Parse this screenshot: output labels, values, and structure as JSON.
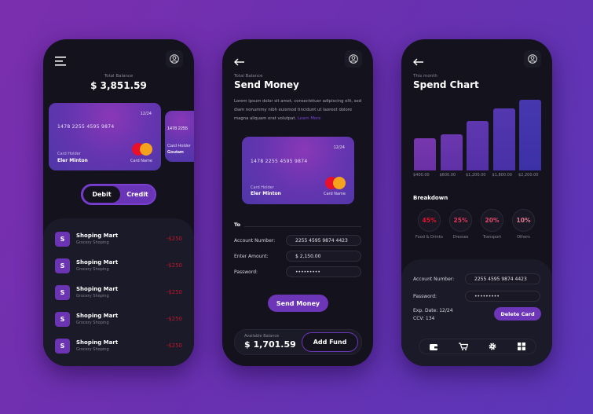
{
  "colors": {
    "accent": "#6d35b7",
    "negative": "#c0172c",
    "percent": "#e0243c",
    "panel": "#1b1a28",
    "screen": "#13121d"
  },
  "home": {
    "menu_icon": "hamburger-menu-icon",
    "profile_icon": "user-circle-icon",
    "total_label": "Total Balance",
    "total_value": "$ 3,851.59",
    "card": {
      "expiry": "12/24",
      "number": "1478 2255 4595 9874",
      "holder_label": "Card Holder",
      "holder_name": "Eler Minton",
      "brand_label": "Card Name"
    },
    "card2": {
      "number": "1478 2255",
      "holder_label": "Card Holder",
      "holder_name": "Goutam"
    },
    "toggle": {
      "debit": "Debit",
      "credit": "Credit",
      "selected": "Debit"
    },
    "transactions": [
      {
        "initial": "S",
        "name": "Shoping Mart",
        "category": "Grocery Shoping",
        "amount": "-$250"
      },
      {
        "initial": "S",
        "name": "Shoping Mart",
        "category": "Grocery Shoping",
        "amount": "-$250"
      },
      {
        "initial": "S",
        "name": "Shoping Mart",
        "category": "Grocery Shoping",
        "amount": "-$250"
      },
      {
        "initial": "S",
        "name": "Shoping Mart",
        "category": "Grocery Shoping",
        "amount": "-$250"
      },
      {
        "initial": "S",
        "name": "Shoping Mart",
        "category": "Grocery Shoping",
        "amount": "-$250"
      }
    ]
  },
  "send": {
    "subtitle": "Total Balance",
    "title": "Send Money",
    "description": "Lorem ipsum dolor sit amet, consectetuer adipiscing elit, sed diam nonummy nibh euismod tincidunt ut laoreet dolore magna aliquam erat volutpat.",
    "learn_more": "Learn More",
    "card": {
      "expiry": "12/24",
      "number": "1478 2255 4595 9874",
      "holder_label": "Card Holder",
      "holder_name": "Eler Minton",
      "brand_label": "Card Name"
    },
    "to_label": "To",
    "account_label": "Account Number:",
    "account_value": "2255 4595 9874 4423",
    "amount_label": "Enter Amount:",
    "amount_value": "$ 2,150.00",
    "password_label": "Password:",
    "password_value": "•••••••••",
    "send_button": "Send Money",
    "available_label": "Available Balance",
    "available_value": "$ 1,701.59",
    "add_fund_button": "Add Fund"
  },
  "chart": {
    "subtitle": "This month",
    "title": "Spend Chart",
    "breakdown_title": "Breakdown",
    "breakdown": [
      {
        "percent": "45%",
        "label": "Food & Drinks"
      },
      {
        "percent": "25%",
        "label": "Dresses"
      },
      {
        "percent": "20%",
        "label": "Transport"
      },
      {
        "percent": "10%",
        "label": "Others"
      }
    ],
    "account_label": "Account Number:",
    "account_value": "2255 4595 9874 4423",
    "password_label": "Password:",
    "password_value": "•••••••••",
    "exp": "Exp. Date: 12/24",
    "ccv": "CCV: 134",
    "delete_button": "Delete Card",
    "nav_icons": [
      "wallet-icon",
      "cart-icon",
      "gear-icon",
      "grid-icon"
    ]
  },
  "chart_data": {
    "type": "bar",
    "categories": [
      "$400.00",
      "$600.00",
      "$1,200.00",
      "$1,800.00",
      "$2,200.00"
    ],
    "values": [
      400,
      600,
      1200,
      1800,
      2200
    ],
    "title": "Spend Chart",
    "xlabel": "",
    "ylabel": ""
  }
}
